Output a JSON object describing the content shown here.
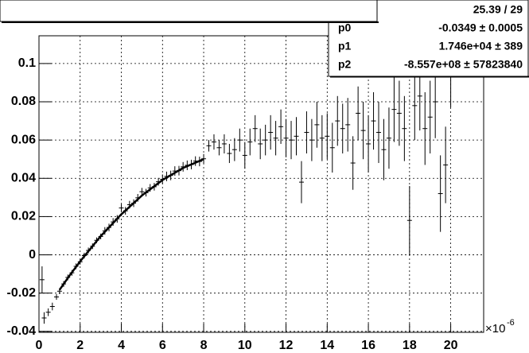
{
  "chart_data": {
    "type": "scatter",
    "x": [
      0.15,
      0.25,
      0.45,
      0.65,
      0.85,
      1.0,
      1.2,
      1.4,
      1.6,
      1.8,
      2.0,
      2.2,
      2.4,
      2.6,
      2.8,
      3.0,
      3.2,
      3.4,
      3.6,
      3.8,
      4.0,
      4.2,
      4.4,
      4.6,
      4.8,
      5.0,
      5.2,
      5.4,
      5.6,
      5.8,
      6.0,
      6.2,
      6.4,
      6.6,
      6.8,
      7.0,
      7.2,
      7.4,
      7.6,
      7.8,
      8.0,
      8.25,
      8.5,
      8.75,
      9.0,
      9.25,
      9.5,
      9.75,
      10.0,
      10.25,
      10.5,
      10.75,
      11.0,
      11.25,
      11.5,
      11.75,
      12.0,
      12.25,
      12.5,
      12.75,
      13.0,
      13.25,
      13.5,
      13.75,
      14.0,
      14.25,
      14.5,
      14.75,
      15.0,
      15.25,
      15.5,
      15.75,
      16.0,
      16.25,
      16.5,
      16.75,
      17.0,
      17.25,
      17.5,
      17.75,
      18.0,
      18.25,
      18.5,
      18.75,
      19.0,
      19.25,
      19.5,
      19.75,
      20.0
    ],
    "series": [
      {
        "color": "#000000",
        "values": [
          -0.013,
          -0.033,
          -0.03,
          -0.027,
          -0.022,
          -0.019,
          -0.0152,
          -0.0118,
          -0.0094,
          -0.006,
          -0.0036,
          -0.0004,
          0.0023,
          0.0045,
          0.0076,
          0.0096,
          0.0125,
          0.0143,
          0.0172,
          0.0188,
          0.0245,
          0.023,
          0.0262,
          0.027,
          0.0298,
          0.033,
          0.0325,
          0.035,
          0.0356,
          0.0382,
          0.0395,
          0.041,
          0.0415,
          0.0438,
          0.044,
          0.046,
          0.0468,
          0.0472,
          0.049,
          0.0488,
          0.0502,
          0.057,
          0.059,
          0.056,
          0.058,
          0.053,
          0.055,
          0.06,
          0.052,
          0.059,
          0.066,
          0.058,
          0.06,
          0.064,
          0.061,
          0.067,
          0.061,
          0.06,
          0.062,
          0.038,
          0.064,
          0.06,
          0.068,
          0.061,
          0.062,
          0.056,
          0.07,
          0.066,
          0.068,
          0.048,
          0.074,
          0.065,
          0.058,
          0.07,
          0.064,
          0.055,
          0.061,
          0.076,
          0.074,
          0.066,
          0.018,
          0.078,
          0.083,
          0.066,
          0.072,
          0.08,
          0.032,
          0.047,
          0.097
        ],
        "errors": [
          0.007,
          0.003,
          0.002,
          0.002,
          0.0015,
          0.0015,
          0.0015,
          0.0015,
          0.0015,
          0.0015,
          0.0015,
          0.0015,
          0.0015,
          0.0015,
          0.0015,
          0.0015,
          0.002,
          0.002,
          0.002,
          0.002,
          0.002,
          0.002,
          0.002,
          0.002,
          0.002,
          0.002,
          0.002,
          0.002,
          0.002,
          0.002,
          0.0025,
          0.0025,
          0.0025,
          0.0025,
          0.0025,
          0.0025,
          0.0025,
          0.0025,
          0.0025,
          0.0025,
          0.0025,
          0.003,
          0.004,
          0.004,
          0.005,
          0.005,
          0.006,
          0.006,
          0.007,
          0.007,
          0.007,
          0.008,
          0.008,
          0.009,
          0.009,
          0.009,
          0.01,
          0.01,
          0.01,
          0.011,
          0.011,
          0.011,
          0.012,
          0.012,
          0.012,
          0.013,
          0.013,
          0.013,
          0.014,
          0.014,
          0.014,
          0.015,
          0.015,
          0.015,
          0.016,
          0.016,
          0.016,
          0.017,
          0.017,
          0.017,
          0.018,
          0.018,
          0.018,
          0.019,
          0.019,
          0.019,
          0.02,
          0.02,
          0.02
        ]
      }
    ],
    "fit": {
      "color": "#000000",
      "x": [
        1,
        1.5,
        2,
        3,
        4,
        5,
        6,
        7,
        8
      ],
      "values": [
        -0.0183,
        -0.0106,
        -0.0034,
        0.0098,
        0.0212,
        0.031,
        0.0391,
        0.0454,
        0.05
      ]
    },
    "xlim": [
      0,
      21.6
    ],
    "ylim": [
      -0.0405,
      0.1145
    ],
    "xticks": [
      0,
      2,
      4,
      6,
      8,
      10,
      12,
      14,
      16,
      18,
      20
    ],
    "yticks": [
      -0.04,
      -0.02,
      0,
      0.02,
      0.04,
      0.06,
      0.08,
      0.1
    ],
    "grid": true,
    "x_exponent_base": "×10",
    "x_exponent": "-6",
    "stats": {
      "chi2_ndf": "25.39 / 29",
      "params": [
        {
          "name": "p0",
          "value": "-0.0349 ± 0.0005"
        },
        {
          "name": "p1",
          "value": "1.746e+04 ± 389"
        },
        {
          "name": "p2",
          "value": "-8.557e+08 ± 57823840"
        }
      ]
    }
  }
}
